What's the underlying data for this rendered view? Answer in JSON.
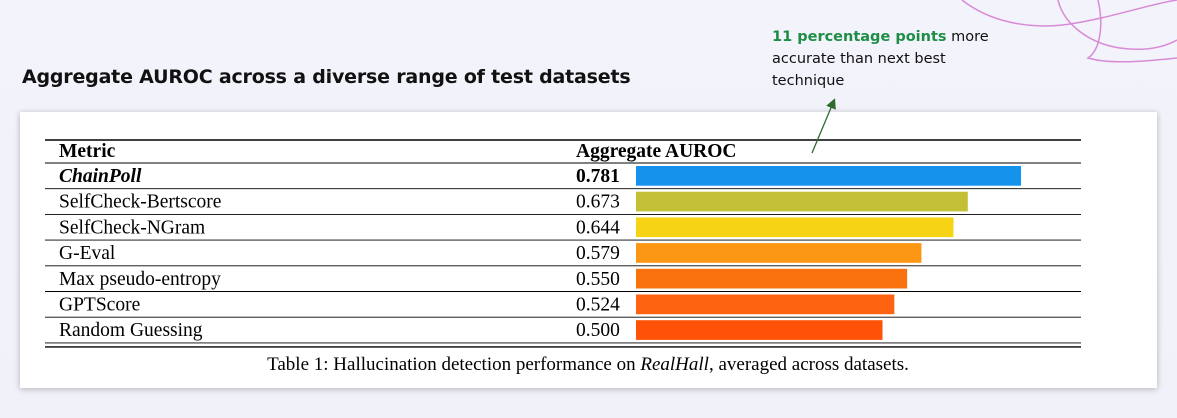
{
  "heading": "Aggregate AUROC across a diverse range of test datasets",
  "callout": {
    "highlight": "11 percentage points",
    "text": "more accurate than next best technique"
  },
  "colors": {
    "highlight": "#1e8e46",
    "arrow": "#2e6b2e",
    "decoration": "#d98ad6"
  },
  "chart_data": {
    "type": "table",
    "columns": [
      "Metric",
      "Aggregate AUROC"
    ],
    "rows": [
      {
        "metric": "ChainPoll",
        "value": 0.781,
        "value_label": "0.781",
        "bold": true,
        "color": "#1592ec"
      },
      {
        "metric": "SelfCheck-Bertscore",
        "value": 0.673,
        "value_label": "0.673",
        "bold": false,
        "color": "#c3bf36"
      },
      {
        "metric": "SelfCheck-NGram",
        "value": 0.644,
        "value_label": "0.644",
        "bold": false,
        "color": "#f7d315"
      },
      {
        "metric": "G-Eval",
        "value": 0.579,
        "value_label": "0.579",
        "bold": false,
        "color": "#fb9712"
      },
      {
        "metric": "Max pseudo-entropy",
        "value": 0.55,
        "value_label": "0.550",
        "bold": false,
        "color": "#f9720e"
      },
      {
        "metric": "GPTScore",
        "value": 0.524,
        "value_label": "0.524",
        "bold": false,
        "color": "#fd6310"
      },
      {
        "metric": "Random Guessing",
        "value": 0.5,
        "value_label": "0.500",
        "bold": false,
        "color": "#fd5208"
      }
    ],
    "caption": {
      "prefix": "Table 1: Hallucination detection performance on ",
      "dataset": "RealHall",
      "suffix": ", averaged across datasets."
    }
  }
}
